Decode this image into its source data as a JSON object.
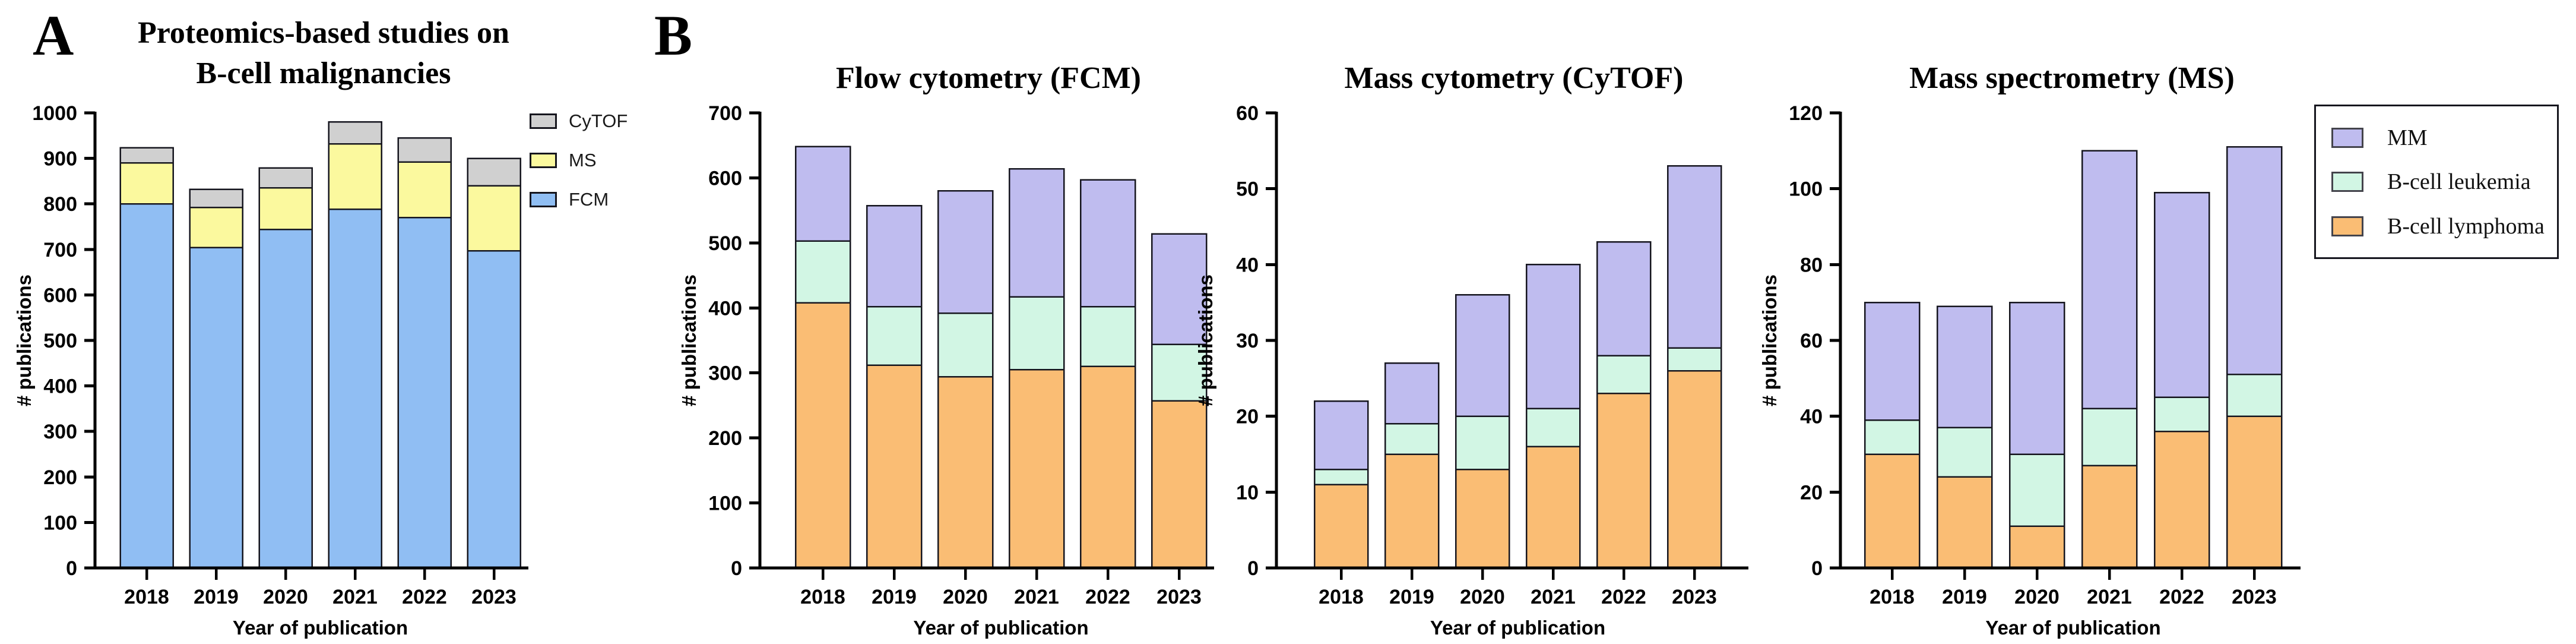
{
  "figure": {
    "panel_a_label": "A",
    "panel_b_label": "B",
    "background_color": "#ffffff",
    "axis_color": "#000000",
    "bar_outline_color": "#15151e"
  },
  "chart_data": [
    {
      "id": "panel-a-overview",
      "type": "bar",
      "stacked": true,
      "title_lines": [
        "Proteomics-based studies on",
        "B-cell malignancies"
      ],
      "xlabel": "Year of publication",
      "ylabel": "# publications",
      "categories": [
        "2018",
        "2019",
        "2020",
        "2021",
        "2022",
        "2023"
      ],
      "ylim": [
        0,
        1000
      ],
      "ytick_step": 100,
      "grid": false,
      "legend_position": "top-right, unboxed",
      "legend_order": [
        "CyTOF",
        "MS",
        "FCM"
      ],
      "series": [
        {
          "name": "FCM",
          "color": "#90BEF3",
          "values": [
            800,
            704,
            744,
            788,
            770,
            697
          ]
        },
        {
          "name": "MS",
          "color": "#FBF99E",
          "values": [
            90,
            88,
            91,
            144,
            122,
            143
          ]
        },
        {
          "name": "CyTOF",
          "color": "#D0D0D0",
          "values": [
            33,
            40,
            44,
            48,
            53,
            60
          ]
        }
      ]
    },
    {
      "id": "panel-b-fcm",
      "type": "bar",
      "stacked": true,
      "title": "Flow cytometry (FCM)",
      "xlabel": "Year of publication",
      "ylabel": "# publications",
      "categories": [
        "2018",
        "2019",
        "2020",
        "2021",
        "2022",
        "2023"
      ],
      "ylim": [
        0,
        700
      ],
      "ytick_step": 100,
      "grid": false,
      "series": [
        {
          "name": "B-cell lymphoma",
          "color": "#FABD74",
          "values": [
            408,
            312,
            294,
            305,
            310,
            257
          ]
        },
        {
          "name": "B-cell leukemia",
          "color": "#D2F6E4",
          "values": [
            95,
            90,
            98,
            112,
            92,
            87
          ]
        },
        {
          "name": "MM",
          "color": "#BFBCEF",
          "values": [
            145,
            155,
            188,
            197,
            195,
            170
          ]
        }
      ]
    },
    {
      "id": "panel-b-cytof",
      "type": "bar",
      "stacked": true,
      "title": "Mass cytometry (CyTOF)",
      "xlabel": "Year of publication",
      "ylabel": "# publications",
      "categories": [
        "2018",
        "2019",
        "2020",
        "2021",
        "2022",
        "2023"
      ],
      "ylim": [
        0,
        60
      ],
      "ytick_step": 10,
      "grid": false,
      "series": [
        {
          "name": "B-cell lymphoma",
          "color": "#FABD74",
          "values": [
            11,
            15,
            13,
            16,
            23,
            26
          ]
        },
        {
          "name": "B-cell leukemia",
          "color": "#D2F6E4",
          "values": [
            2,
            4,
            7,
            5,
            5,
            3
          ]
        },
        {
          "name": "MM",
          "color": "#BFBCEF",
          "values": [
            9,
            8,
            16,
            19,
            15,
            24
          ]
        }
      ]
    },
    {
      "id": "panel-b-ms",
      "type": "bar",
      "stacked": true,
      "title": "Mass spectrometry (MS)",
      "xlabel": "Year of publication",
      "ylabel": "# publications",
      "categories": [
        "2018",
        "2019",
        "2020",
        "2021",
        "2022",
        "2023"
      ],
      "ylim": [
        0,
        120
      ],
      "ytick_step": 20,
      "grid": false,
      "series": [
        {
          "name": "B-cell lymphoma",
          "color": "#FABD74",
          "values": [
            30,
            24,
            11,
            27,
            36,
            40
          ]
        },
        {
          "name": "B-cell leukemia",
          "color": "#D2F6E4",
          "values": [
            9,
            13,
            19,
            15,
            9,
            11
          ]
        },
        {
          "name": "MM",
          "color": "#BFBCEF",
          "values": [
            31,
            32,
            40,
            68,
            54,
            60
          ]
        }
      ]
    }
  ],
  "legend_b": {
    "items": [
      {
        "label": "MM",
        "color": "#BFBCEF"
      },
      {
        "label": "B-cell leukemia",
        "color": "#D2F6E4"
      },
      {
        "label": "B-cell lymphoma",
        "color": "#FABD74"
      }
    ]
  }
}
